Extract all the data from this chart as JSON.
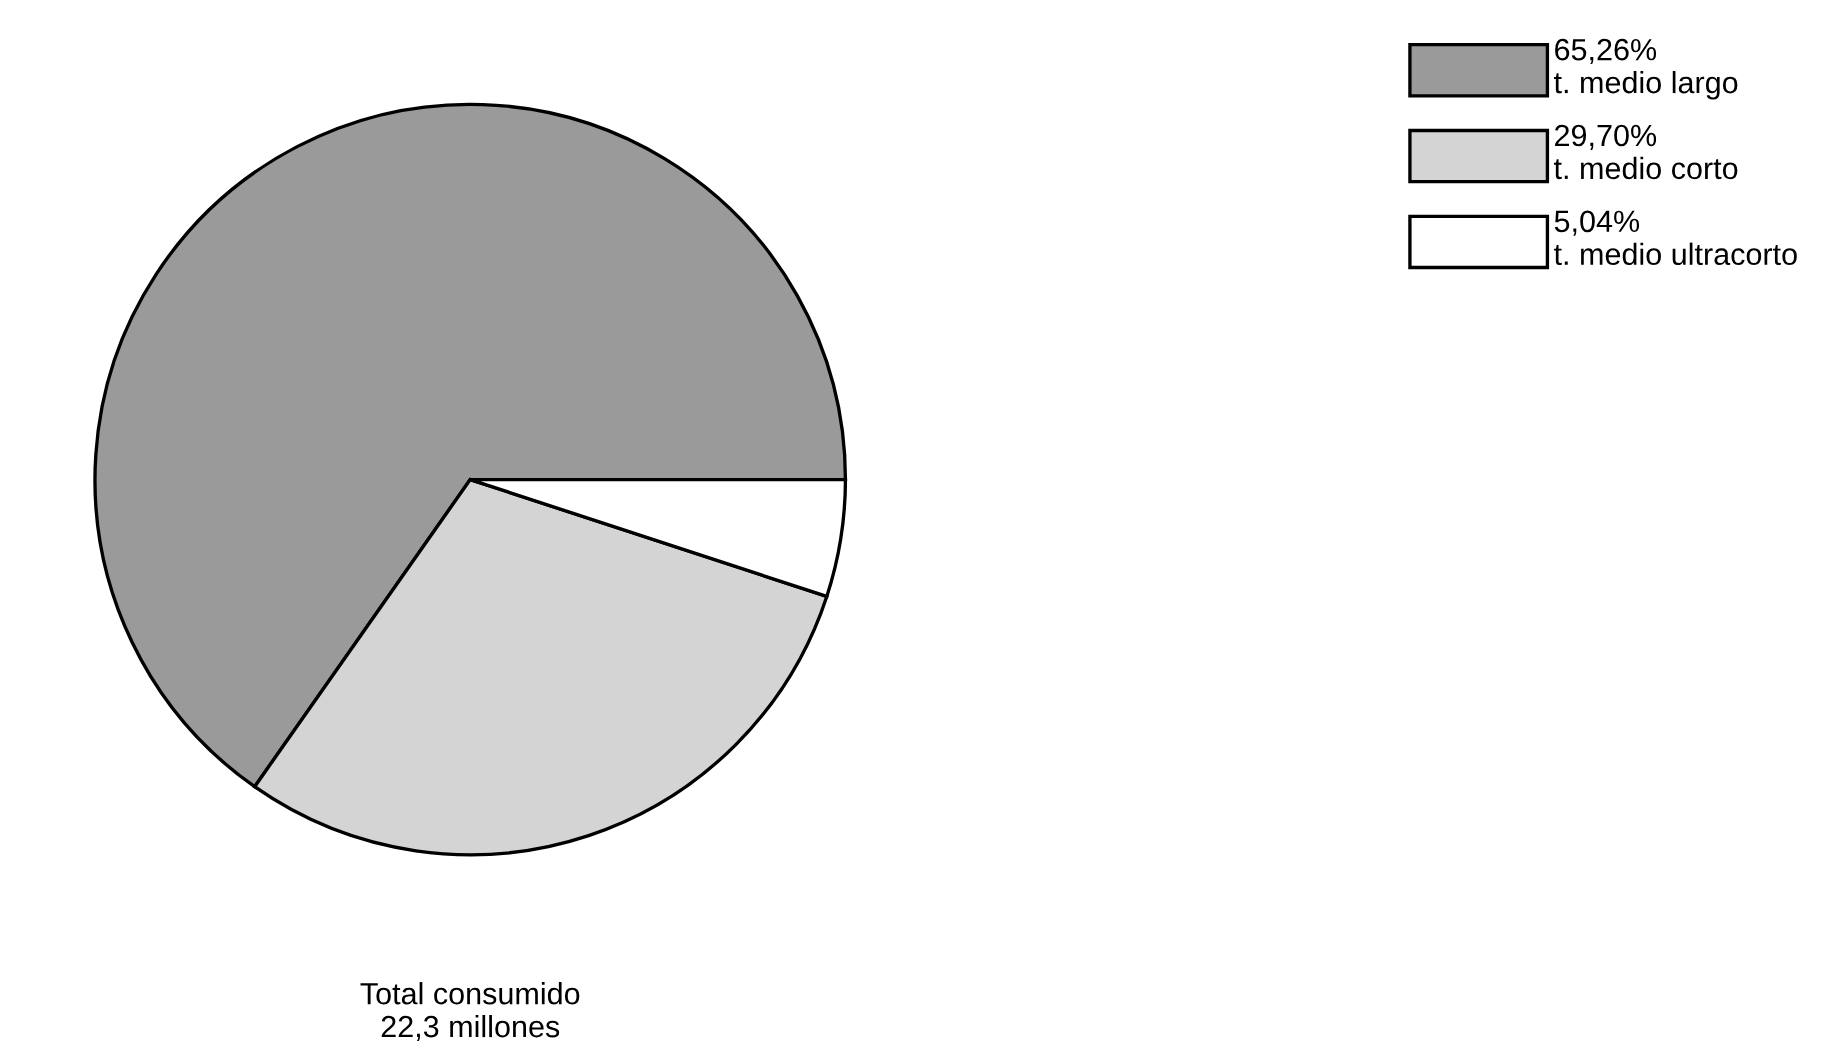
{
  "chart_data": {
    "type": "pie",
    "categories": [
      "t. medio largo",
      "t. medio corto",
      "t. medio ultracorto"
    ],
    "values": [
      65.26,
      29.7,
      5.04
    ],
    "value_labels": [
      "65,26%",
      "29,70%",
      "5,04%"
    ],
    "colors": [
      "#9a9a9a",
      "#d4d4d4",
      "#ffffff"
    ],
    "legend": "top right",
    "annotations": [
      "Total consumido\n22,3 millones"
    ]
  }
}
